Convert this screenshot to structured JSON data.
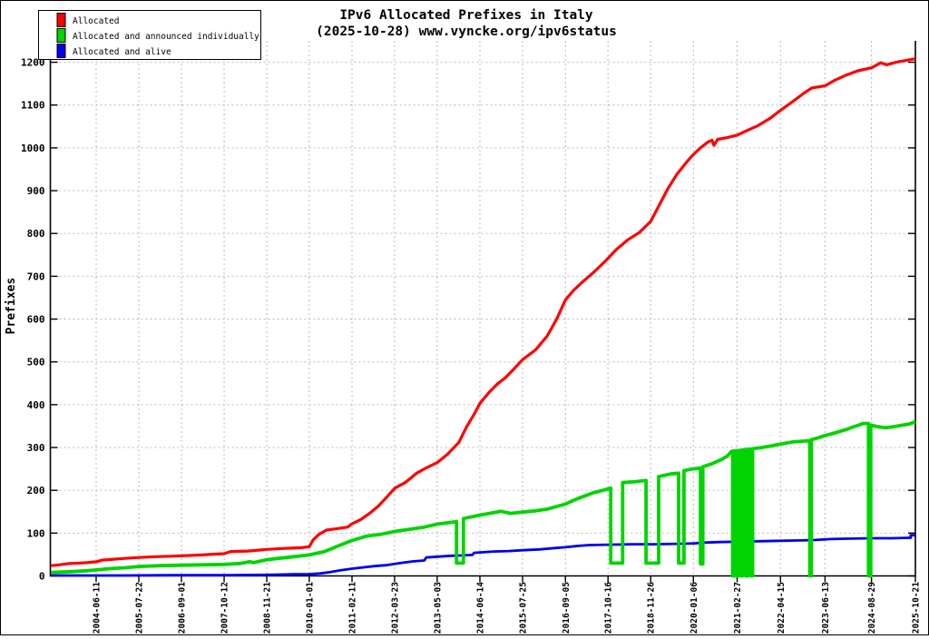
{
  "window": {
    "background": "#ffffff",
    "frame_color": "#000000"
  },
  "title": {
    "line1": "IPv6 Allocated Prefixes in Italy",
    "line2": "(2025-10-28) www.vyncke.org/ipv6status"
  },
  "chart_data": {
    "type": "line",
    "title": "IPv6 Allocated Prefixes in Italy",
    "subtitle": "(2025-10-28) www.vyncke.org/ipv6status",
    "xlabel": "",
    "ylabel": "Prefixes",
    "grid": true,
    "legend_position": "top-left",
    "ylim": [
      0,
      1250
    ],
    "yticks": [
      0,
      100,
      200,
      300,
      400,
      500,
      600,
      700,
      800,
      900,
      1000,
      1100,
      1200
    ],
    "xlim": [
      2003.25,
      2025.803
    ],
    "xticks": [
      {
        "label": "2004-06-11",
        "t": 2004.444
      },
      {
        "label": "2005-07-22",
        "t": 2005.556
      },
      {
        "label": "2006-09-01",
        "t": 2006.668
      },
      {
        "label": "2007-10-12",
        "t": 2007.781
      },
      {
        "label": "2008-11-21",
        "t": 2008.892
      },
      {
        "label": "2010-01-01",
        "t": 2010.0
      },
      {
        "label": "2011-02-11",
        "t": 2011.115
      },
      {
        "label": "2012-03-23",
        "t": 2012.224
      },
      {
        "label": "2013-05-03",
        "t": 2013.336
      },
      {
        "label": "2014-06-14",
        "t": 2014.449
      },
      {
        "label": "2015-07-25",
        "t": 2015.562
      },
      {
        "label": "2016-09-05",
        "t": 2016.679
      },
      {
        "label": "2017-10-16",
        "t": 2017.789
      },
      {
        "label": "2018-11-26",
        "t": 2018.901
      },
      {
        "label": "2020-01-06",
        "t": 2020.014
      },
      {
        "label": "2021-02-27",
        "t": 2021.156
      },
      {
        "label": "2022-04-15",
        "t": 2022.285
      },
      {
        "label": "2023-06-13",
        "t": 2023.447
      },
      {
        "label": "2024-08-29",
        "t": 2024.659
      },
      {
        "label": "2025-10-21",
        "t": 2025.803
      }
    ],
    "colors": {
      "grid": "#b9b9b9",
      "axis": "#000000"
    },
    "series": [
      {
        "name": "Allocated",
        "color": "#ff0000",
        "width": 3.2,
        "points": [
          [
            2003.27,
            24
          ],
          [
            2003.5,
            26
          ],
          [
            2003.75,
            29
          ],
          [
            2004.0,
            30
          ],
          [
            2004.2,
            31
          ],
          [
            2004.45,
            33
          ],
          [
            2004.6,
            37
          ],
          [
            2004.9,
            39
          ],
          [
            2005.2,
            41
          ],
          [
            2005.56,
            43
          ],
          [
            2006.0,
            45
          ],
          [
            2006.4,
            46
          ],
          [
            2006.67,
            47
          ],
          [
            2007.2,
            49
          ],
          [
            2007.6,
            51
          ],
          [
            2007.78,
            52
          ],
          [
            2007.95,
            57
          ],
          [
            2008.4,
            58
          ],
          [
            2008.89,
            62
          ],
          [
            2009.3,
            64
          ],
          [
            2009.8,
            66
          ],
          [
            2010.0,
            68
          ],
          [
            2010.1,
            84
          ],
          [
            2010.25,
            97
          ],
          [
            2010.45,
            107
          ],
          [
            2010.7,
            110
          ],
          [
            2011.0,
            114
          ],
          [
            2011.12,
            122
          ],
          [
            2011.35,
            132
          ],
          [
            2011.6,
            148
          ],
          [
            2011.8,
            163
          ],
          [
            2012.0,
            182
          ],
          [
            2012.23,
            205
          ],
          [
            2012.5,
            218
          ],
          [
            2012.8,
            240
          ],
          [
            2013.0,
            250
          ],
          [
            2013.34,
            265
          ],
          [
            2013.6,
            284
          ],
          [
            2013.9,
            312
          ],
          [
            2014.1,
            348
          ],
          [
            2014.3,
            378
          ],
          [
            2014.45,
            403
          ],
          [
            2014.7,
            430
          ],
          [
            2014.9,
            448
          ],
          [
            2015.1,
            462
          ],
          [
            2015.3,
            480
          ],
          [
            2015.56,
            505
          ],
          [
            2015.9,
            528
          ],
          [
            2016.2,
            560
          ],
          [
            2016.45,
            600
          ],
          [
            2016.68,
            645
          ],
          [
            2016.9,
            668
          ],
          [
            2017.1,
            685
          ],
          [
            2017.4,
            708
          ],
          [
            2017.6,
            725
          ],
          [
            2017.79,
            742
          ],
          [
            2018.0,
            762
          ],
          [
            2018.3,
            785
          ],
          [
            2018.6,
            802
          ],
          [
            2018.9,
            828
          ],
          [
            2019.1,
            862
          ],
          [
            2019.35,
            905
          ],
          [
            2019.6,
            940
          ],
          [
            2019.85,
            968
          ],
          [
            2020.02,
            985
          ],
          [
            2020.2,
            1000
          ],
          [
            2020.4,
            1014
          ],
          [
            2020.5,
            1018
          ],
          [
            2020.55,
            1006
          ],
          [
            2020.65,
            1020
          ],
          [
            2020.9,
            1024
          ],
          [
            2021.16,
            1030
          ],
          [
            2021.45,
            1042
          ],
          [
            2021.7,
            1052
          ],
          [
            2022.0,
            1068
          ],
          [
            2022.29,
            1088
          ],
          [
            2022.6,
            1108
          ],
          [
            2022.9,
            1128
          ],
          [
            2023.1,
            1140
          ],
          [
            2023.45,
            1145
          ],
          [
            2023.7,
            1158
          ],
          [
            2024.0,
            1170
          ],
          [
            2024.3,
            1180
          ],
          [
            2024.66,
            1187
          ],
          [
            2024.9,
            1199
          ],
          [
            2025.05,
            1194
          ],
          [
            2025.3,
            1200
          ],
          [
            2025.6,
            1205
          ],
          [
            2025.8,
            1208
          ]
        ]
      },
      {
        "name": "Allocated and announced individually",
        "color": "#00d400",
        "width": 3.8,
        "points": [
          [
            2003.27,
            8
          ],
          [
            2003.8,
            10
          ],
          [
            2004.2,
            12
          ],
          [
            2004.45,
            14
          ],
          [
            2004.8,
            17
          ],
          [
            2005.2,
            19
          ],
          [
            2005.56,
            22
          ],
          [
            2006.1,
            24
          ],
          [
            2006.67,
            25
          ],
          [
            2007.3,
            26
          ],
          [
            2007.78,
            27
          ],
          [
            2008.2,
            29
          ],
          [
            2008.45,
            33
          ],
          [
            2008.55,
            31
          ],
          [
            2008.89,
            38
          ],
          [
            2009.3,
            42
          ],
          [
            2009.7,
            46
          ],
          [
            2010.0,
            49
          ],
          [
            2010.4,
            57
          ],
          [
            2010.75,
            70
          ],
          [
            2011.12,
            83
          ],
          [
            2011.5,
            93
          ],
          [
            2011.85,
            97
          ],
          [
            2012.23,
            104
          ],
          [
            2012.7,
            110
          ],
          [
            2013.0,
            114
          ],
          [
            2013.34,
            121
          ],
          [
            2013.7,
            125
          ],
          [
            2013.84,
            127
          ],
          [
            2013.84,
            30
          ],
          [
            2014.02,
            30
          ],
          [
            2014.02,
            134
          ],
          [
            2014.45,
            142
          ],
          [
            2014.7,
            146
          ],
          [
            2015.0,
            151
          ],
          [
            2015.25,
            146
          ],
          [
            2015.56,
            149
          ],
          [
            2015.9,
            152
          ],
          [
            2016.2,
            156
          ],
          [
            2016.68,
            168
          ],
          [
            2016.9,
            177
          ],
          [
            2017.1,
            184
          ],
          [
            2017.4,
            194
          ],
          [
            2017.65,
            200
          ],
          [
            2017.86,
            205
          ],
          [
            2017.86,
            30
          ],
          [
            2018.17,
            30
          ],
          [
            2018.17,
            218
          ],
          [
            2018.5,
            220
          ],
          [
            2018.78,
            223
          ],
          [
            2018.78,
            30
          ],
          [
            2019.11,
            30
          ],
          [
            2019.11,
            232
          ],
          [
            2019.4,
            238
          ],
          [
            2019.63,
            240
          ],
          [
            2019.63,
            30
          ],
          [
            2019.77,
            30
          ],
          [
            2019.77,
            246
          ],
          [
            2020.0,
            250
          ],
          [
            2020.2,
            252
          ],
          [
            2020.2,
            28
          ],
          [
            2020.26,
            28
          ],
          [
            2020.26,
            255
          ],
          [
            2020.5,
            262
          ],
          [
            2020.75,
            272
          ],
          [
            2020.9,
            280
          ],
          [
            2021.0,
            290
          ],
          [
            2021.04,
            292
          ],
          [
            2021.04,
            0
          ],
          [
            2021.09,
            0
          ],
          [
            2021.09,
            292
          ],
          [
            2021.14,
            292
          ],
          [
            2021.14,
            0
          ],
          [
            2021.19,
            0
          ],
          [
            2021.19,
            293
          ],
          [
            2021.24,
            293
          ],
          [
            2021.24,
            0
          ],
          [
            2021.29,
            0
          ],
          [
            2021.29,
            294
          ],
          [
            2021.38,
            295
          ],
          [
            2021.38,
            0
          ],
          [
            2021.44,
            0
          ],
          [
            2021.44,
            296
          ],
          [
            2021.52,
            296
          ],
          [
            2021.52,
            0
          ],
          [
            2021.56,
            0
          ],
          [
            2021.56,
            297
          ],
          [
            2021.8,
            300
          ],
          [
            2022.0,
            303
          ],
          [
            2022.29,
            308
          ],
          [
            2022.6,
            313
          ],
          [
            2023.05,
            316
          ],
          [
            2023.05,
            0
          ],
          [
            2023.09,
            0
          ],
          [
            2023.09,
            318
          ],
          [
            2023.25,
            322
          ],
          [
            2023.45,
            328
          ],
          [
            2023.7,
            334
          ],
          [
            2024.0,
            342
          ],
          [
            2024.25,
            350
          ],
          [
            2024.45,
            356
          ],
          [
            2024.58,
            356
          ],
          [
            2024.58,
            0
          ],
          [
            2024.64,
            0
          ],
          [
            2024.64,
            352
          ],
          [
            2024.8,
            349
          ],
          [
            2025.0,
            346
          ],
          [
            2025.2,
            348
          ],
          [
            2025.45,
            352
          ],
          [
            2025.65,
            355
          ],
          [
            2025.8,
            360
          ]
        ]
      },
      {
        "name": "Allocated and alive",
        "color": "#0000ee",
        "width": 2.8,
        "points": [
          [
            2003.27,
            1
          ],
          [
            2005.0,
            1
          ],
          [
            2006.5,
            2
          ],
          [
            2008.0,
            2
          ],
          [
            2009.1,
            3
          ],
          [
            2009.6,
            4
          ],
          [
            2010.0,
            4
          ],
          [
            2010.3,
            6
          ],
          [
            2010.55,
            9
          ],
          [
            2010.8,
            13
          ],
          [
            2011.12,
            17
          ],
          [
            2011.4,
            20
          ],
          [
            2011.7,
            23
          ],
          [
            2012.0,
            25
          ],
          [
            2012.23,
            28
          ],
          [
            2012.45,
            31
          ],
          [
            2012.7,
            34
          ],
          [
            2013.0,
            36
          ],
          [
            2013.05,
            43
          ],
          [
            2013.34,
            45
          ],
          [
            2013.7,
            47
          ],
          [
            2014.0,
            48
          ],
          [
            2014.25,
            49
          ],
          [
            2014.3,
            54
          ],
          [
            2014.45,
            55
          ],
          [
            2014.8,
            57
          ],
          [
            2015.2,
            58
          ],
          [
            2015.56,
            60
          ],
          [
            2016.0,
            62
          ],
          [
            2016.4,
            65
          ],
          [
            2016.68,
            67
          ],
          [
            2017.0,
            70
          ],
          [
            2017.3,
            72
          ],
          [
            2017.79,
            73
          ],
          [
            2018.4,
            74
          ],
          [
            2019.0,
            74
          ],
          [
            2019.6,
            75
          ],
          [
            2020.02,
            76
          ],
          [
            2020.35,
            78
          ],
          [
            2020.7,
            79
          ],
          [
            2021.16,
            80
          ],
          [
            2021.7,
            81
          ],
          [
            2022.29,
            82
          ],
          [
            2022.8,
            83
          ],
          [
            2023.2,
            84
          ],
          [
            2023.6,
            86
          ],
          [
            2024.0,
            87
          ],
          [
            2024.66,
            88
          ],
          [
            2025.2,
            88
          ],
          [
            2025.62,
            89
          ],
          [
            2025.68,
            89
          ],
          [
            2025.68,
            95
          ],
          [
            2025.8,
            95
          ]
        ]
      }
    ]
  }
}
